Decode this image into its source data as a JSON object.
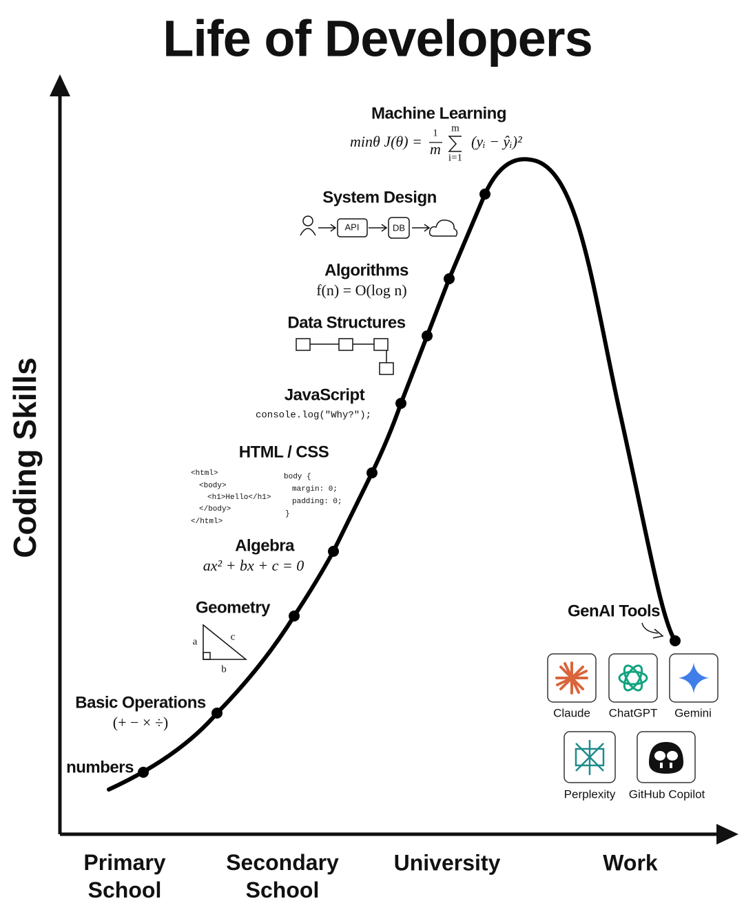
{
  "title": "Life of Developers",
  "y_axis": {
    "label": "Coding Skills"
  },
  "x_axis": {
    "stages": [
      "Primary School",
      "Secondary School",
      "University",
      "Work"
    ]
  },
  "milestones": {
    "numbers": {
      "label": "numbers"
    },
    "basic_operations": {
      "label": "Basic Operations",
      "detail": "(+ − × ÷)"
    },
    "geometry": {
      "label": "Geometry",
      "sides": [
        "a",
        "b",
        "c"
      ]
    },
    "algebra": {
      "label": "Algebra",
      "formula": "ax² + bx + c = 0"
    },
    "html_css": {
      "label": "HTML / CSS",
      "html_code": [
        "<html>",
        "<body>",
        "<h1>Hello</h1>",
        "</body>",
        "</html>"
      ],
      "css_code": [
        "body {",
        "margin: 0;",
        "padding: 0;",
        "}"
      ]
    },
    "javascript": {
      "label": "JavaScript",
      "code": "console.log(\"Why?\");"
    },
    "data_structures": {
      "label": "Data Structures"
    },
    "algorithms": {
      "label": "Algorithms",
      "formula": "f(n) = O(log n)"
    },
    "system_design": {
      "label": "System Design",
      "nodes": [
        "API",
        "DB"
      ]
    },
    "machine_learning": {
      "label": "Machine Learning",
      "formula": {
        "lhs": "minθ J(θ) =",
        "numerator": "1",
        "denominator": "m",
        "sum_top": "m",
        "sum_bottom": "i=1",
        "term": "(yᵢ − ŷᵢ)²"
      }
    }
  },
  "genai": {
    "label": "GenAI Tools",
    "tools": [
      "Claude",
      "ChatGPT",
      "Gemini",
      "Perplexity",
      "GitHub Copilot"
    ]
  }
}
